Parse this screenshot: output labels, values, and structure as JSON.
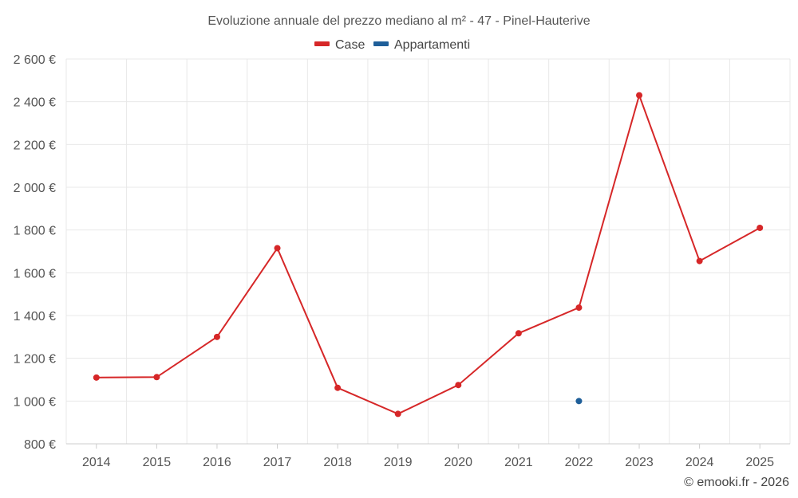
{
  "chart_data": {
    "type": "line",
    "title": "Evoluzione annuale del prezzo mediano al m² - 47 - Pinel-Hauterive",
    "categories": [
      "2014",
      "2015",
      "2016",
      "2017",
      "2018",
      "2019",
      "2020",
      "2021",
      "2022",
      "2023",
      "2024",
      "2025"
    ],
    "ylim": [
      800,
      2600
    ],
    "yticks": [
      800,
      1000,
      1200,
      1400,
      1600,
      1800,
      2000,
      2200,
      2400,
      2600
    ],
    "ytick_labels": [
      "800 €",
      "1 000 €",
      "1 200 €",
      "1 400 €",
      "1 600 €",
      "1 800 €",
      "2 000 €",
      "2 200 €",
      "2 400 €",
      "2 600 €"
    ],
    "grid": true,
    "legend_position": "top-center",
    "series": [
      {
        "name": "Case",
        "color": "#d62728",
        "values": [
          1110,
          1112,
          1300,
          1715,
          1062,
          940,
          1075,
          1317,
          1437,
          2430,
          1655,
          1810
        ]
      },
      {
        "name": "Appartamenti",
        "color": "#1f5f99",
        "values": [
          null,
          null,
          null,
          null,
          null,
          null,
          null,
          null,
          1000,
          null,
          null,
          null
        ]
      }
    ]
  },
  "credit": "© emooki.fr - 2026"
}
